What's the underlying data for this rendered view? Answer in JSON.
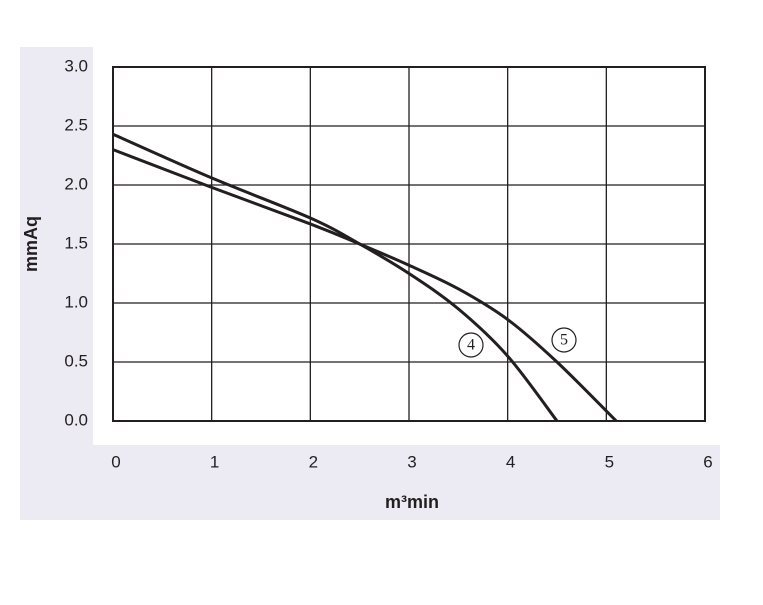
{
  "chart_data": {
    "type": "line",
    "x_label": "m³min",
    "y_label": "mmAq",
    "xlim": [
      0,
      6
    ],
    "ylim": [
      0,
      3
    ],
    "xticks": [
      0,
      1,
      2,
      3,
      4,
      5,
      6
    ],
    "yticks": [
      {
        "value": 0,
        "label": "0.0"
      },
      {
        "value": 0.5,
        "label": "0.5"
      },
      {
        "value": 1,
        "label": "1.0"
      },
      {
        "value": 1.5,
        "label": "1.5"
      },
      {
        "value": 2,
        "label": "2.0"
      },
      {
        "value": 2.5,
        "label": "2.5"
      },
      {
        "value": 3,
        "label": "3.0"
      }
    ],
    "grid": true,
    "series": [
      {
        "name": "4",
        "color": "#231f20",
        "x": [
          0,
          1,
          2,
          2.5,
          3,
          3.5,
          4,
          4.5
        ],
        "values": [
          2.43,
          2.06,
          1.72,
          1.5,
          1.25,
          0.95,
          0.55,
          0
        ]
      },
      {
        "name": "5",
        "color": "#231f20",
        "x": [
          0,
          1,
          2,
          2.5,
          3,
          3.5,
          4,
          4.5,
          5.1
        ],
        "values": [
          2.3,
          1.98,
          1.67,
          1.5,
          1.32,
          1.12,
          0.86,
          0.5,
          0
        ]
      }
    ]
  }
}
